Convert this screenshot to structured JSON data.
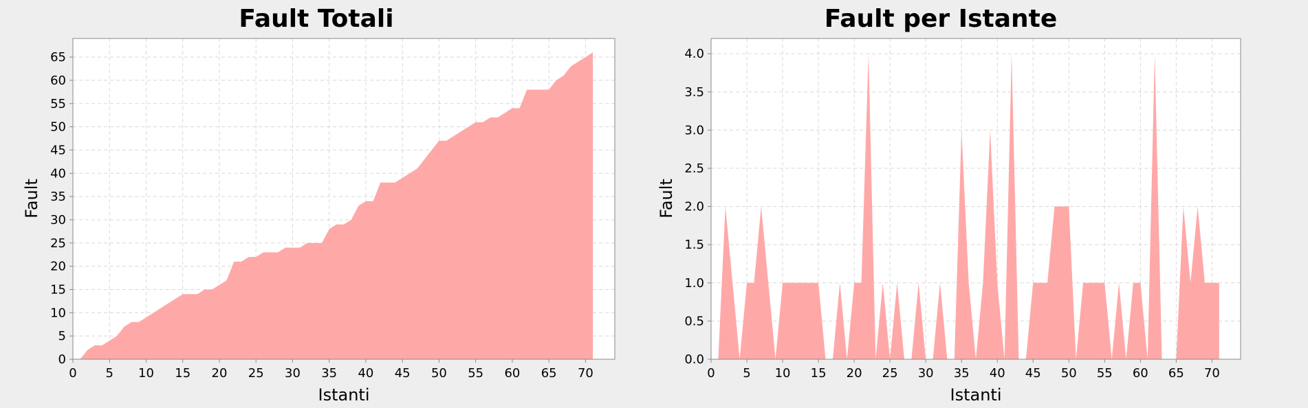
{
  "chart_data": [
    {
      "type": "area",
      "title": "Fault Totali",
      "xlabel": "Istanti",
      "ylabel": "Fault",
      "xlim": [
        0,
        74
      ],
      "ylim": [
        0,
        69
      ],
      "xticks": [
        0,
        5,
        10,
        15,
        20,
        25,
        30,
        35,
        40,
        45,
        50,
        55,
        60,
        65,
        70
      ],
      "yticks": [
        0,
        5,
        10,
        15,
        20,
        25,
        30,
        35,
        40,
        45,
        50,
        55,
        60,
        65
      ],
      "grid": true,
      "color": "#ffa8a8",
      "x": [
        1,
        2,
        3,
        4,
        5,
        6,
        7,
        8,
        9,
        10,
        11,
        12,
        13,
        14,
        15,
        16,
        17,
        18,
        19,
        20,
        21,
        22,
        23,
        24,
        25,
        26,
        27,
        28,
        29,
        30,
        31,
        32,
        33,
        34,
        35,
        36,
        37,
        38,
        39,
        40,
        41,
        42,
        43,
        44,
        45,
        46,
        47,
        48,
        49,
        50,
        51,
        52,
        53,
        54,
        55,
        56,
        57,
        58,
        59,
        60,
        61,
        62,
        63,
        64,
        65,
        66,
        67,
        68,
        69,
        70,
        71
      ],
      "values": [
        0,
        2,
        3,
        3,
        4,
        5,
        7,
        8,
        8,
        9,
        10,
        11,
        12,
        13,
        14,
        14,
        14,
        15,
        15,
        16,
        17,
        21,
        21,
        22,
        22,
        23,
        23,
        23,
        24,
        24,
        24,
        25,
        25,
        25,
        28,
        29,
        29,
        30,
        33,
        34,
        34,
        38,
        38,
        38,
        39,
        40,
        41,
        43,
        45,
        47,
        47,
        48,
        49,
        50,
        51,
        51,
        52,
        52,
        53,
        54,
        54,
        58,
        58,
        58,
        58,
        60,
        61,
        63,
        64,
        65,
        66
      ]
    },
    {
      "type": "area",
      "title": "Fault per Istante",
      "xlabel": "Istanti",
      "ylabel": "Fault",
      "xlim": [
        0,
        74
      ],
      "ylim": [
        0,
        4.2
      ],
      "xticks": [
        0,
        5,
        10,
        15,
        20,
        25,
        30,
        35,
        40,
        45,
        50,
        55,
        60,
        65,
        70
      ],
      "yticks": [
        "0.0",
        "0.5",
        "1.0",
        "1.5",
        "2.0",
        "2.5",
        "3.0",
        "3.5",
        "4.0"
      ],
      "grid": true,
      "color": "#ffa8a8",
      "x": [
        1,
        2,
        3,
        4,
        5,
        6,
        7,
        8,
        9,
        10,
        11,
        12,
        13,
        14,
        15,
        16,
        17,
        18,
        19,
        20,
        21,
        22,
        23,
        24,
        25,
        26,
        27,
        28,
        29,
        30,
        31,
        32,
        33,
        34,
        35,
        36,
        37,
        38,
        39,
        40,
        41,
        42,
        43,
        44,
        45,
        46,
        47,
        48,
        49,
        50,
        51,
        52,
        53,
        54,
        55,
        56,
        57,
        58,
        59,
        60,
        61,
        62,
        63,
        64,
        65,
        66,
        67,
        68,
        69,
        70,
        71
      ],
      "values": [
        0,
        2,
        1,
        0,
        1,
        1,
        2,
        1,
        0,
        1,
        1,
        1,
        1,
        1,
        1,
        0,
        0,
        1,
        0,
        1,
        1,
        4,
        0,
        1,
        0,
        1,
        0,
        0,
        1,
        0,
        0,
        1,
        0,
        0,
        3,
        1,
        0,
        1,
        3,
        1,
        0,
        4,
        0,
        0,
        1,
        1,
        1,
        2,
        2,
        2,
        0,
        1,
        1,
        1,
        1,
        0,
        1,
        0,
        1,
        1,
        0,
        4,
        0,
        0,
        0,
        2,
        1,
        2,
        1,
        1,
        1
      ]
    }
  ]
}
